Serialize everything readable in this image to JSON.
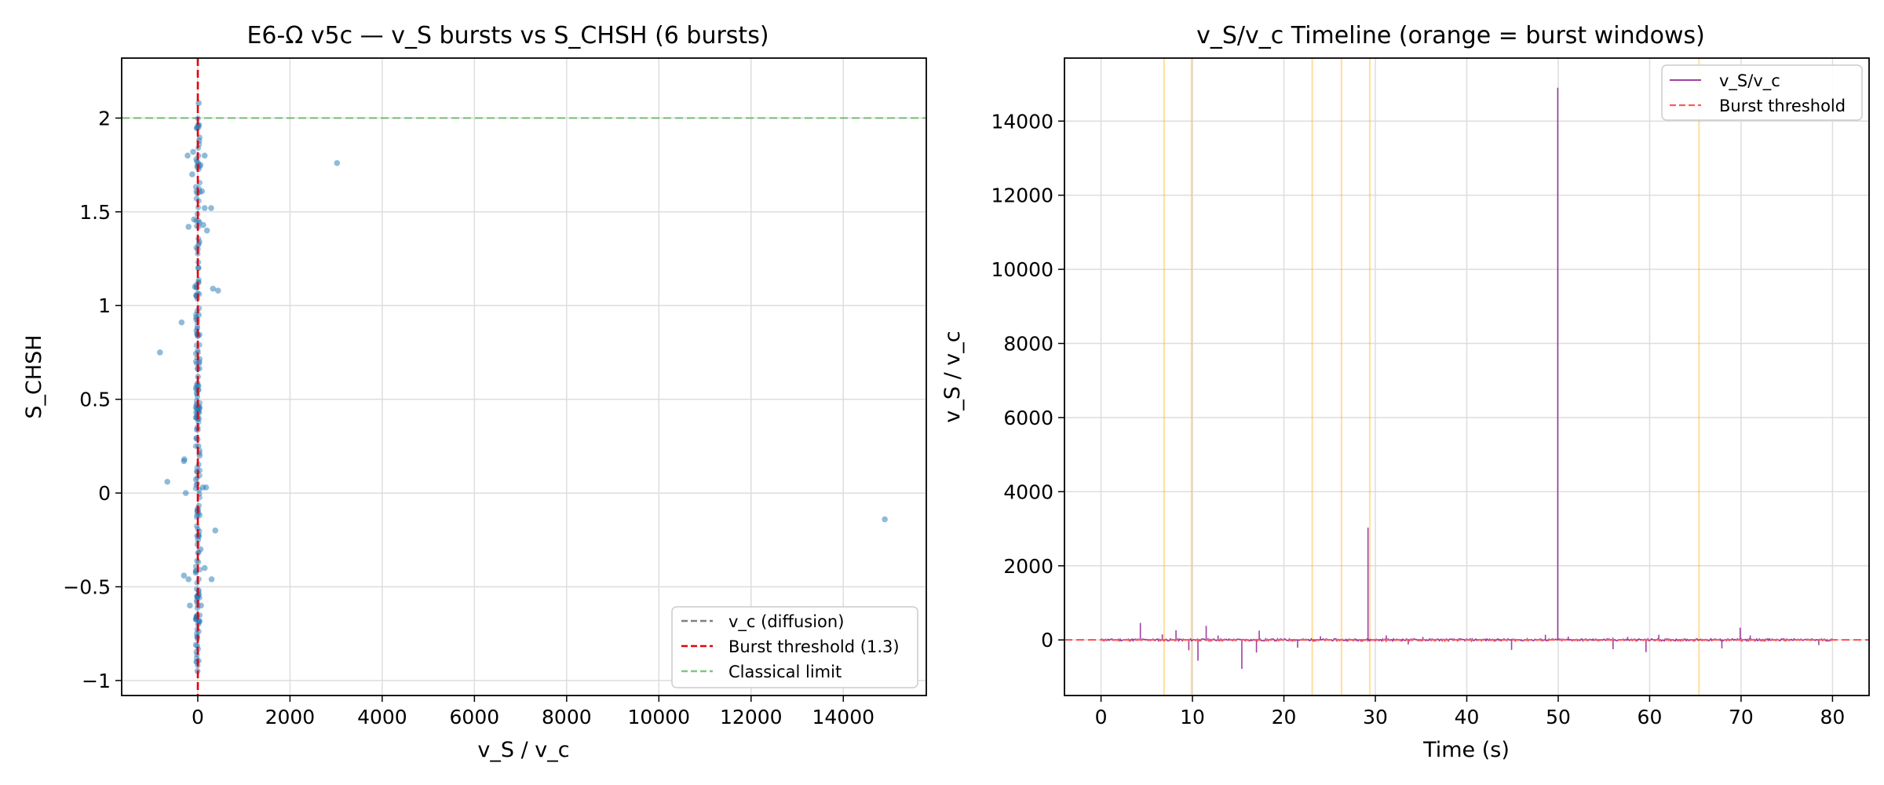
{
  "chart_data": [
    {
      "type": "scatter",
      "title": "E6-Ω v5c — v_S bursts vs S_CHSH (6 bursts)",
      "xlabel": "v_S / v_c",
      "ylabel": "S_CHSH",
      "xlim": [
        -1650,
        15800
      ],
      "ylim": [
        -1.08,
        2.32
      ],
      "xticks": [
        0,
        2000,
        4000,
        6000,
        8000,
        10000,
        12000,
        14000
      ],
      "yticks": [
        -1.0,
        -0.5,
        0.0,
        0.5,
        1.0,
        1.5,
        2.0
      ],
      "grid": true,
      "legend_position": "lower-right",
      "point_color": "#1f77b4",
      "reference_lines": [
        {
          "label": "v_c (diffusion)",
          "orientation": "vertical",
          "value": 1,
          "color": "#808080"
        },
        {
          "label": "Burst threshold (1.3)",
          "orientation": "vertical",
          "value": 1.3,
          "color": "#e8000b"
        },
        {
          "label": "Classical limit",
          "orientation": "horizontal",
          "value": 2.0,
          "color": "#2ca02c"
        }
      ],
      "points": [
        [
          3020,
          1.76
        ],
        [
          14900,
          -0.14
        ],
        [
          -820,
          0.75
        ],
        [
          -350,
          0.91
        ],
        [
          -660,
          0.06
        ],
        [
          -300,
          0.17
        ],
        [
          -290,
          0.18
        ],
        [
          -260,
          0.0
        ],
        [
          -300,
          -0.44
        ],
        [
          -200,
          -0.46
        ],
        [
          -170,
          -0.6
        ],
        [
          -220,
          1.8
        ],
        [
          -200,
          1.42
        ],
        [
          -120,
          1.7
        ],
        [
          -100,
          1.82
        ],
        [
          -80,
          1.46
        ],
        [
          -60,
          1.1
        ],
        [
          -40,
          -0.81
        ],
        [
          -30,
          -0.9
        ],
        [
          -20,
          0.45
        ],
        [
          150,
          1.52
        ],
        [
          150,
          1.8
        ],
        [
          120,
          1.43
        ],
        [
          90,
          1.61
        ],
        [
          60,
          1.75
        ],
        [
          200,
          1.4
        ],
        [
          290,
          1.52
        ],
        [
          330,
          1.09
        ],
        [
          440,
          1.08
        ],
        [
          380,
          -0.2
        ],
        [
          300,
          -0.46
        ],
        [
          150,
          -0.4
        ],
        [
          110,
          0.03
        ],
        [
          180,
          0.03
        ],
        [
          70,
          -0.6
        ],
        [
          60,
          -0.3
        ],
        [
          40,
          0.2
        ],
        [
          20,
          2.08
        ],
        [
          10,
          1.95
        ],
        [
          30,
          1.88
        ],
        [
          -10,
          1.6
        ],
        [
          0,
          1.3
        ],
        [
          10,
          1.2
        ],
        [
          -15,
          0.85
        ],
        [
          5,
          0.62
        ],
        [
          -5,
          0.35
        ],
        [
          12,
          0.25
        ],
        [
          -8,
          -0.1
        ],
        [
          6,
          -0.25
        ],
        [
          -12,
          -0.55
        ],
        [
          8,
          -0.7
        ],
        [
          -6,
          -0.95
        ],
        [
          20,
          0.95
        ],
        [
          -25,
          1.05
        ],
        [
          15,
          0.55
        ]
      ]
    },
    {
      "type": "line",
      "title": "v_S/v_c Timeline (orange = burst windows)",
      "xlabel": "Time (s)",
      "ylabel": "v_S / v_c",
      "xlim": [
        -4,
        84
      ],
      "ylim": [
        -1500,
        15700
      ],
      "xticks": [
        0,
        10,
        20,
        30,
        40,
        50,
        60,
        70,
        80
      ],
      "yticks": [
        0,
        2000,
        4000,
        6000,
        8000,
        10000,
        12000,
        14000
      ],
      "grid": true,
      "legend_position": "upper-right",
      "burst_windows": [
        6.9,
        9.9,
        23.1,
        26.3,
        29.4,
        65.4
      ],
      "burst_window_color": "#ffa500",
      "series": [
        {
          "name": "v_S/v_c",
          "color": "#800080",
          "spikes": [
            [
              4.3,
              460
            ],
            [
              6.7,
              150
            ],
            [
              8.2,
              260
            ],
            [
              9.6,
              -280
            ],
            [
              10.6,
              -560
            ],
            [
              11.5,
              380
            ],
            [
              12.8,
              120
            ],
            [
              15.4,
              -780
            ],
            [
              17.0,
              -340
            ],
            [
              17.3,
              250
            ],
            [
              21.5,
              -210
            ],
            [
              24.0,
              100
            ],
            [
              29.2,
              3030
            ],
            [
              31.2,
              120
            ],
            [
              33.6,
              -120
            ],
            [
              35.2,
              80
            ],
            [
              44.9,
              -270
            ],
            [
              48.6,
              140
            ],
            [
              49.95,
              14900
            ],
            [
              51.1,
              90
            ],
            [
              56.0,
              -250
            ],
            [
              57.6,
              80
            ],
            [
              59.6,
              -330
            ],
            [
              61.0,
              140
            ],
            [
              67.9,
              -230
            ],
            [
              69.9,
              330
            ],
            [
              71.0,
              120
            ],
            [
              78.5,
              -140
            ]
          ]
        },
        {
          "name": "Burst threshold",
          "color": "#ff5a5a",
          "value": 1.3
        }
      ]
    }
  ]
}
